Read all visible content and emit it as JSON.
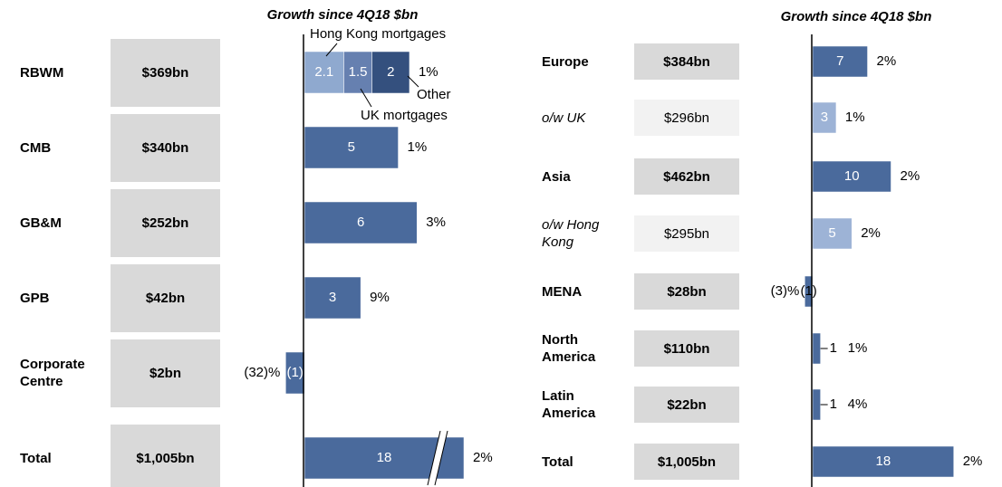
{
  "chart_data": [
    {
      "type": "bar",
      "orientation": "horizontal",
      "title": "Growth since 4Q18 $bn",
      "xlim": [
        -1.5,
        8.5
      ],
      "color": "#4a6a9c",
      "rows": [
        {
          "label": "RBWM",
          "balance": "$369bn",
          "percent": "1%",
          "segments": [
            {
              "name": "Hong Kong mortgages",
              "value": 2.1,
              "color": "#8fa9cf"
            },
            {
              "name": "UK mortgages",
              "value": 1.5,
              "color": "#6680b0"
            },
            {
              "name": "Other",
              "value": 2,
              "color": "#34507e"
            }
          ]
        },
        {
          "label": "CMB",
          "balance": "$340bn",
          "percent": "1%",
          "segments": [
            {
              "value": 5
            }
          ]
        },
        {
          "label": "GB&M",
          "balance": "$252bn",
          "percent": "3%",
          "segments": [
            {
              "value": 6
            }
          ]
        },
        {
          "label": "GPB",
          "balance": "$42bn",
          "percent": "9%",
          "segments": [
            {
              "value": 3
            }
          ]
        },
        {
          "label": "Corporate Centre",
          "balance": "$2bn",
          "percent": "(32)%",
          "segments": [
            {
              "value": -1,
              "value_label": "(1)"
            }
          ]
        },
        {
          "label": "Total",
          "balance": "$1,005bn",
          "percent": "2%",
          "axis_break": true,
          "segments": [
            {
              "value": 18
            }
          ]
        }
      ]
    },
    {
      "type": "bar",
      "orientation": "horizontal",
      "title": "Growth since 4Q18 $bn",
      "xlim": [
        -1.5,
        20
      ],
      "color": "#4a6a9c",
      "sub_color": "#9db3d6",
      "rows": [
        {
          "label": "Europe",
          "balance": "$384bn",
          "percent": "2%",
          "segments": [
            {
              "value": 7
            }
          ]
        },
        {
          "label": "o/w UK",
          "balance": "$296bn",
          "percent": "1%",
          "sub": true,
          "segments": [
            {
              "value": 3
            }
          ]
        },
        {
          "label": "Asia",
          "balance": "$462bn",
          "percent": "2%",
          "segments": [
            {
              "value": 10
            }
          ]
        },
        {
          "label": "o/w Hong Kong",
          "balance": "$295bn",
          "percent": "2%",
          "sub": true,
          "segments": [
            {
              "value": 5
            }
          ]
        },
        {
          "label": "MENA",
          "balance": "$28bn",
          "percent": "(3)%",
          "segments": [
            {
              "value": -1,
              "value_label": "(1)"
            }
          ]
        },
        {
          "label": "North America",
          "balance": "$110bn",
          "percent": "1%",
          "segments": [
            {
              "value": 1
            }
          ]
        },
        {
          "label": "Latin America",
          "balance": "$22bn",
          "percent": "4%",
          "segments": [
            {
              "value": 1
            }
          ]
        },
        {
          "label": "Total",
          "balance": "$1,005bn",
          "percent": "2%",
          "segments": [
            {
              "value": 18
            }
          ]
        }
      ]
    }
  ]
}
